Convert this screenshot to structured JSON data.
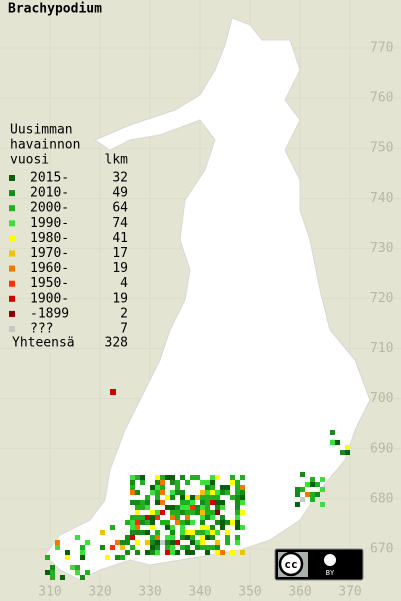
{
  "title": "Brachypodium",
  "legend": {
    "header": [
      "Uusimman",
      "havainnon",
      "vuosi"
    ],
    "count_header": "lkm",
    "rows": [
      {
        "label": "2015-",
        "count": 32,
        "color": "#0b5e0b"
      },
      {
        "label": "2010-",
        "count": 49,
        "color": "#178a17"
      },
      {
        "label": "2000-",
        "count": 64,
        "color": "#22b022"
      },
      {
        "label": "1990-",
        "count": 74,
        "color": "#3ce03c"
      },
      {
        "label": "1980-",
        "count": 41,
        "color": "#ffff00"
      },
      {
        "label": "1970-",
        "count": 17,
        "color": "#f5c000"
      },
      {
        "label": "1960-",
        "count": 19,
        "color": "#f07800"
      },
      {
        "label": "1950-",
        "count": 4,
        "color": "#ff3000"
      },
      {
        "label": "1900-",
        "count": 19,
        "color": "#cc0000"
      },
      {
        "label": "-1899",
        "count": 2,
        "color": "#880000"
      },
      {
        "label": "???",
        "count": 7,
        "color": "#c8c8c8"
      }
    ],
    "total_label": "Yhteensä",
    "total": 328
  },
  "axes": {
    "y_ticks": [
      770,
      760,
      750,
      740,
      730,
      720,
      710,
      700,
      690,
      680,
      670
    ],
    "x_ticks": [
      310,
      320,
      330,
      340,
      350,
      360,
      370
    ]
  },
  "license": {
    "icon": "cc",
    "attribution": "BY"
  }
}
